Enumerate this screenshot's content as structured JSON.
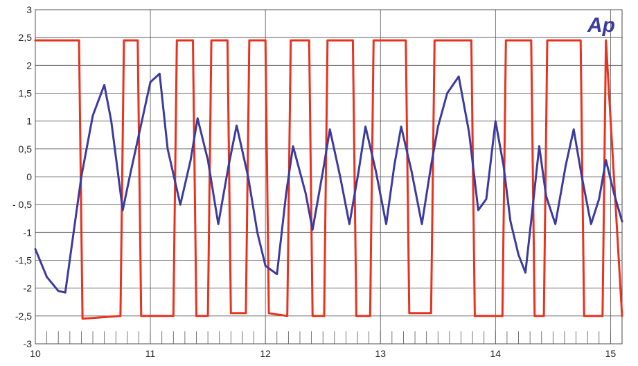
{
  "chart_data": {
    "type": "line",
    "title": "",
    "xlabel": "",
    "ylabel": "",
    "xlim": [
      10,
      15.1
    ],
    "ylim": [
      -3,
      3
    ],
    "grid": true,
    "legend": "none",
    "logo_text": "Ap",
    "x_ticks": [
      {
        "value": 10,
        "label": "10"
      },
      {
        "value": 11,
        "label": "11"
      },
      {
        "value": 12,
        "label": "12"
      },
      {
        "value": 13,
        "label": "13"
      },
      {
        "value": 14,
        "label": "14"
      },
      {
        "value": 15,
        "label": "15"
      }
    ],
    "y_ticks": [
      {
        "value": 3,
        "label": "3"
      },
      {
        "value": 2.5,
        "label": "2,5"
      },
      {
        "value": 2,
        "label": "2"
      },
      {
        "value": 1.5,
        "label": "1,5"
      },
      {
        "value": 1,
        "label": "1"
      },
      {
        "value": 0.5,
        "label": "0,5"
      },
      {
        "value": 0,
        "label": "0"
      },
      {
        "value": -0.5,
        "label": "- 0,5"
      },
      {
        "value": -1,
        "label": "-1"
      },
      {
        "value": -1.5,
        "label": "-1,5"
      },
      {
        "value": -2,
        "label": "-2"
      },
      {
        "value": -2.5,
        "label": "-2,5"
      },
      {
        "value": -3,
        "label": "-3"
      }
    ],
    "series": [
      {
        "color": "#e8321e",
        "x": [
          10.0,
          10.38,
          10.41,
          10.74,
          10.77,
          10.89,
          10.92,
          11.2,
          11.23,
          11.37,
          11.4,
          11.5,
          11.53,
          11.67,
          11.7,
          11.83,
          11.86,
          12.0,
          12.03,
          12.19,
          12.22,
          12.38,
          12.41,
          12.51,
          12.54,
          12.76,
          12.79,
          12.91,
          12.94,
          13.22,
          13.25,
          13.44,
          13.47,
          13.79,
          13.82,
          14.06,
          14.09,
          14.31,
          14.34,
          14.42,
          14.45,
          14.74,
          14.77,
          14.93,
          14.96,
          15.1
        ],
        "y": [
          2.45,
          2.45,
          -2.55,
          -2.5,
          2.45,
          2.45,
          -2.5,
          -2.5,
          2.45,
          2.45,
          -2.5,
          -2.5,
          2.45,
          2.45,
          -2.45,
          -2.45,
          2.45,
          2.45,
          -2.45,
          -2.5,
          2.45,
          2.45,
          -2.5,
          -2.5,
          2.45,
          2.45,
          -2.5,
          -2.5,
          2.45,
          2.45,
          -2.45,
          -2.45,
          2.45,
          2.45,
          -2.5,
          -2.5,
          2.45,
          2.45,
          -2.5,
          -2.5,
          2.45,
          2.45,
          -2.5,
          -2.5,
          2.45,
          -2.5
        ]
      },
      {
        "color": "#3b3aa0",
        "x": [
          10.0,
          10.1,
          10.2,
          10.26,
          10.4,
          10.5,
          10.6,
          10.66,
          10.76,
          10.82,
          11.0,
          11.08,
          11.15,
          11.26,
          11.35,
          11.41,
          11.5,
          11.59,
          11.68,
          11.75,
          11.85,
          11.93,
          12.0,
          12.1,
          12.18,
          12.24,
          12.35,
          12.41,
          12.5,
          12.56,
          12.65,
          12.73,
          12.81,
          12.87,
          12.96,
          13.05,
          13.12,
          13.18,
          13.27,
          13.36,
          13.44,
          13.5,
          13.58,
          13.68,
          13.77,
          13.85,
          13.92,
          14.0,
          14.07,
          14.13,
          14.2,
          14.26,
          14.32,
          14.38,
          14.44,
          14.52,
          14.61,
          14.68,
          14.75,
          14.83,
          14.9,
          14.96,
          15.03,
          15.1
        ],
        "y": [
          -1.3,
          -1.8,
          -2.05,
          -2.08,
          0.0,
          1.1,
          1.65,
          1.0,
          -0.6,
          0.0,
          1.7,
          1.85,
          0.5,
          -0.5,
          0.3,
          1.05,
          0.3,
          -0.85,
          0.2,
          0.92,
          0.0,
          -1.0,
          -1.6,
          -1.75,
          -0.3,
          0.55,
          -0.3,
          -0.95,
          0.1,
          0.85,
          0.0,
          -0.85,
          0.1,
          0.9,
          0.1,
          -0.85,
          0.2,
          0.9,
          0.1,
          -0.85,
          0.2,
          0.9,
          1.5,
          1.8,
          0.8,
          -0.6,
          -0.4,
          1.0,
          0.2,
          -0.8,
          -1.4,
          -1.72,
          -0.6,
          0.55,
          -0.35,
          -0.85,
          0.2,
          0.85,
          0.0,
          -0.85,
          -0.4,
          0.3,
          -0.3,
          -0.8
        ]
      }
    ]
  }
}
